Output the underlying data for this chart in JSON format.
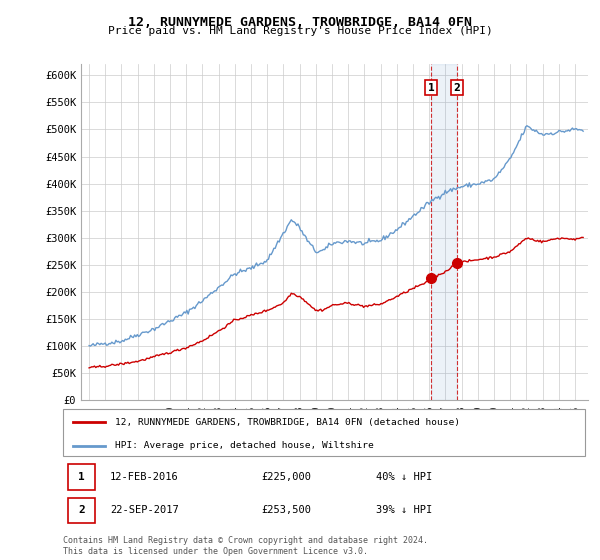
{
  "title": "12, RUNNYMEDE GARDENS, TROWBRIDGE, BA14 0FN",
  "subtitle": "Price paid vs. HM Land Registry's House Price Index (HPI)",
  "legend_line1": "12, RUNNYMEDE GARDENS, TROWBRIDGE, BA14 0FN (detached house)",
  "legend_line2": "HPI: Average price, detached house, Wiltshire",
  "footer": "Contains HM Land Registry data © Crown copyright and database right 2024.\nThis data is licensed under the Open Government Licence v3.0.",
  "transaction1_date": "12-FEB-2016",
  "transaction1_price": "£225,000",
  "transaction1_hpi": "40% ↓ HPI",
  "transaction2_date": "22-SEP-2017",
  "transaction2_price": "£253,500",
  "transaction2_hpi": "39% ↓ HPI",
  "red_color": "#cc0000",
  "blue_color": "#6699cc",
  "background_color": "#ffffff",
  "ylim_min": 0,
  "ylim_max": 620000,
  "yticks": [
    0,
    50000,
    100000,
    150000,
    200000,
    250000,
    300000,
    350000,
    400000,
    450000,
    500000,
    550000,
    600000
  ],
  "transaction1_x": 2016.12,
  "transaction1_y": 225000,
  "transaction2_x": 2017.72,
  "transaction2_y": 253500,
  "vline1_x": 2016.12,
  "vline2_x": 2017.72,
  "xlim_min": 1994.5,
  "xlim_max": 2025.8
}
